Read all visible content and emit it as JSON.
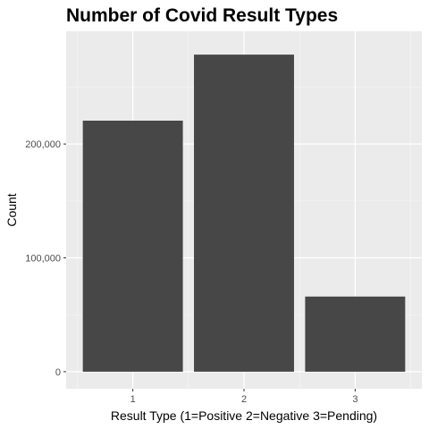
{
  "chart_data": {
    "type": "bar",
    "title": "Number of Covid Result Types",
    "xlabel": "Result Type (1=Positive 2=Negative 3=Pending)",
    "ylabel": "Count",
    "categories": [
      "1",
      "2",
      "3"
    ],
    "values": [
      220500,
      278500,
      66000
    ],
    "ylim": [
      -15000,
      299000
    ],
    "yticks": [
      0,
      100000,
      200000
    ],
    "ytick_labels": [
      "0",
      "100,000",
      "200,000"
    ],
    "grid": true,
    "legend": "none",
    "colors": {
      "panel": "#ebebeb",
      "grid_major": "#ffffff",
      "grid_minor": "#f5f5f5",
      "bar": "#474747",
      "tick": "#333333"
    }
  }
}
